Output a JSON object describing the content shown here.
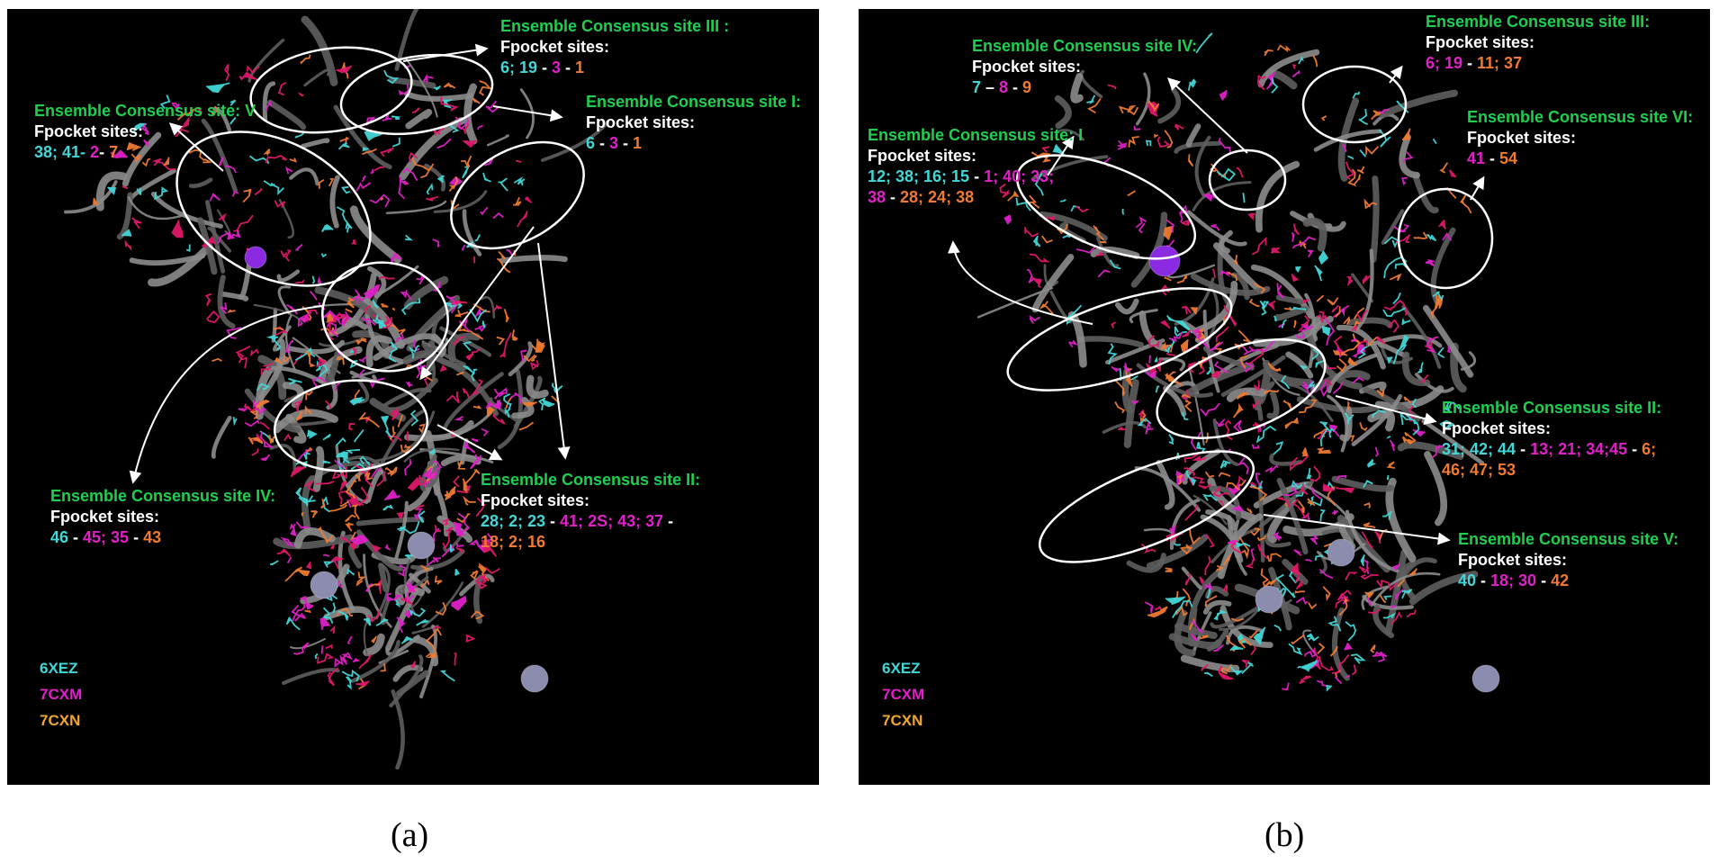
{
  "colors": {
    "cyan": "#42d7d7",
    "magenta": "#e020c8",
    "orange": "#f07a30",
    "green": "#1fcf4f",
    "white": "#ffffff",
    "background": "#000000"
  },
  "legend": [
    {
      "name": "6XEZ",
      "color": "#42d7d7"
    },
    {
      "name": "7CXM",
      "color": "#e020c8"
    },
    {
      "name": "7CXN",
      "color": "#f0a830"
    }
  ],
  "panel_a": {
    "label": "(a)",
    "annotations": [
      {
        "title": "Ensemble Consensus site III :",
        "sub": "Fpocket sites:",
        "lines": [
          [
            [
              "6; 19",
              "cyan"
            ],
            [
              " - ",
              "white"
            ],
            [
              "3",
              "magenta"
            ],
            [
              " - ",
              "white"
            ],
            [
              "1",
              "orange"
            ]
          ]
        ]
      },
      {
        "title": "Ensemble Consensus site I:",
        "sub": "Fpocket sites:",
        "lines": [
          [
            [
              "6",
              "cyan"
            ],
            [
              " - ",
              "white"
            ],
            [
              "3",
              "magenta"
            ],
            [
              " - ",
              "white"
            ],
            [
              "1",
              "orange"
            ]
          ]
        ]
      },
      {
        "title": "Ensemble Consensus site: V",
        "sub": "Fpocket sites:",
        "lines": [
          [
            [
              "38; 41- ",
              "cyan"
            ],
            [
              "2",
              "magenta"
            ],
            [
              "- ",
              "white"
            ],
            [
              "7",
              "orange"
            ]
          ]
        ]
      },
      {
        "title": "Ensemble Consensus site IV:",
        "sub": "Fpocket sites:",
        "lines": [
          [
            [
              "46",
              "cyan"
            ],
            [
              " - ",
              "white"
            ],
            [
              "45; 35",
              "magenta"
            ],
            [
              " - ",
              "white"
            ],
            [
              "43",
              "orange"
            ]
          ]
        ]
      },
      {
        "title": "Ensemble Consensus site II:",
        "sub": "Fpocket sites:",
        "lines": [
          [
            [
              "28; 2; 23",
              "cyan"
            ],
            [
              " - ",
              "white"
            ],
            [
              "41; 2S; 43; 37",
              "magenta"
            ],
            [
              " -",
              "white"
            ]
          ],
          [
            [
              "18; 2; 16",
              "orange"
            ]
          ]
        ]
      }
    ]
  },
  "panel_b": {
    "label": "(b)",
    "annotations": [
      {
        "title": "Ensemble Consensus site IV:",
        "sub": "Fpocket sites:",
        "lines": [
          [
            [
              "7",
              "cyan"
            ],
            [
              " – ",
              "white"
            ],
            [
              "8",
              "magenta"
            ],
            [
              " - ",
              "white"
            ],
            [
              "9",
              "orange"
            ]
          ]
        ]
      },
      {
        "title": "Ensemble Consensus site III:",
        "sub": "Fpocket sites:",
        "lines": [
          [
            [
              "6; 19",
              "magenta"
            ],
            [
              " - ",
              "white"
            ],
            [
              "11; 37",
              "orange"
            ]
          ]
        ]
      },
      {
        "title": "Ensemble Consensus site: I",
        "sub": "Fpocket sites:",
        "lines": [
          [
            [
              "12; 38; 16; 15",
              "cyan"
            ],
            [
              " - ",
              "white"
            ],
            [
              "1; 40; 33;",
              "magenta"
            ]
          ],
          [
            [
              "38",
              "magenta"
            ],
            [
              " - ",
              "white"
            ],
            [
              "28; 24; 38",
              "orange"
            ]
          ]
        ]
      },
      {
        "title": "Ensemble Consensus site VI:",
        "sub": "Fpocket sites:",
        "lines": [
          [
            [
              "41",
              "magenta"
            ],
            [
              " - ",
              "white"
            ],
            [
              "54",
              "orange"
            ]
          ]
        ]
      },
      {
        "title": "Ensemble Consensus site II:",
        "sub": "Fpocket sites:",
        "lines": [
          [
            [
              "31; 42; 44",
              "cyan"
            ],
            [
              " - ",
              "white"
            ],
            [
              "13; 21; 34;45",
              "magenta"
            ],
            [
              " - ",
              "white"
            ],
            [
              "6;",
              "orange"
            ]
          ],
          [
            [
              "46; 47; 53",
              "orange"
            ]
          ]
        ]
      },
      {
        "title": "Ensemble Consensus site V:",
        "sub": "Fpocket sites:",
        "lines": [
          [
            [
              "40",
              "cyan"
            ],
            [
              " - ",
              "white"
            ],
            [
              "18; 30",
              "magenta"
            ],
            [
              " - ",
              "white"
            ],
            [
              "42",
              "orange"
            ]
          ]
        ]
      }
    ]
  }
}
